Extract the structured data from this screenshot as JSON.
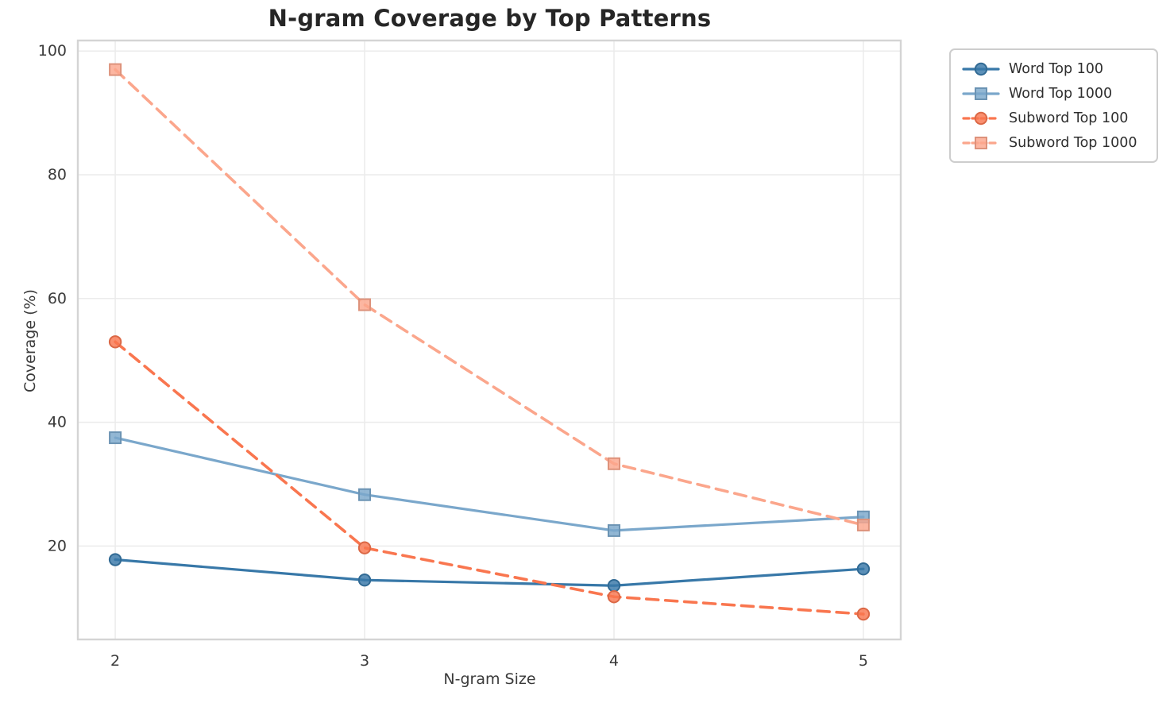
{
  "title": "N-gram Coverage by Top Patterns",
  "axes": {
    "xlabel": "N-gram Size",
    "ylabel": "Coverage (%)"
  },
  "chart_data": {
    "type": "line",
    "title": "N-gram Coverage by Top Patterns",
    "xlabel": "N-gram Size",
    "ylabel": "Coverage (%)",
    "x": [
      2,
      3,
      4,
      5
    ],
    "xticks": [
      2,
      3,
      4,
      5
    ],
    "yticks": [
      20,
      40,
      60,
      80,
      100
    ],
    "xlim": [
      1.85,
      5.15
    ],
    "ylim": [
      4.9,
      101.7
    ],
    "grid": true,
    "legend_position": "outside-upper-right",
    "series": [
      {
        "name": "Word Top 100",
        "values": [
          17.8,
          14.5,
          13.6,
          16.3
        ],
        "color": "#3878a8",
        "marker": "circle",
        "line_style": "solid"
      },
      {
        "name": "Word Top 1000",
        "values": [
          37.5,
          28.3,
          22.5,
          24.7
        ],
        "color": "#7aa7cb",
        "marker": "square",
        "line_style": "solid"
      },
      {
        "name": "Subword Top 100",
        "values": [
          53.0,
          19.7,
          11.8,
          9.0
        ],
        "color": "#f9764f",
        "marker": "circle",
        "line_style": "dashed"
      },
      {
        "name": "Subword Top 1000",
        "values": [
          97.0,
          59.0,
          33.3,
          23.4
        ],
        "color": "#fba68c",
        "marker": "square",
        "line_style": "dashed"
      }
    ],
    "style_colors": {
      "grid": "#ebebeb",
      "spine": "#d4d4d4",
      "tick_text": "#3a3a3a",
      "title_text": "#262626"
    }
  }
}
